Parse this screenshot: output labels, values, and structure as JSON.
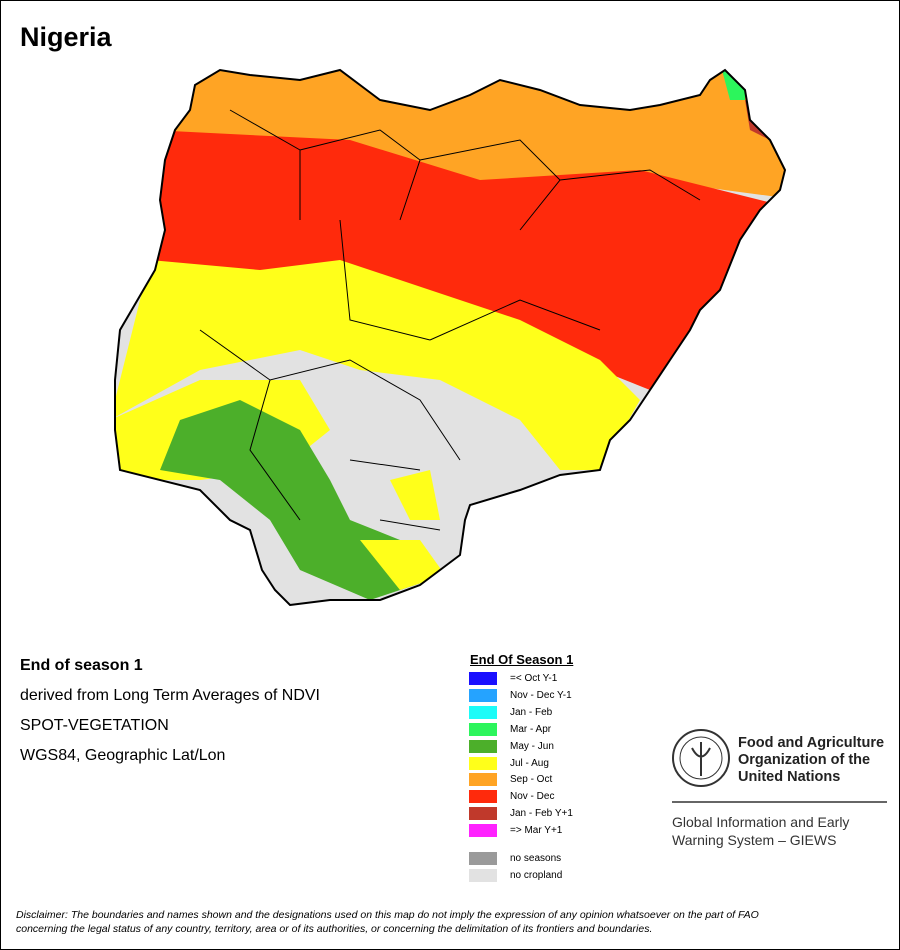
{
  "header": {
    "title": "Nigeria"
  },
  "info": [
    "End of season 1",
    "derived from Long Term Averages of NDVI",
    "SPOT-VEGETATION",
    "WGS84, Geographic Lat/Lon"
  ],
  "legend": {
    "title": "End Of Season 1",
    "items": [
      {
        "label": "=< Oct Y-1",
        "color": "#1a10ff"
      },
      {
        "label": "Nov - Dec Y-1",
        "color": "#25a3ff"
      },
      {
        "label": "Jan - Feb",
        "color": "#1cfcf8"
      },
      {
        "label": "Mar - Apr",
        "color": "#2cf55c"
      },
      {
        "label": "May - Jun",
        "color": "#4caf2a"
      },
      {
        "label": "Jul - Aug",
        "color": "#ffff1a"
      },
      {
        "label": "Sep - Oct",
        "color": "#ffa424"
      },
      {
        "label": "Nov - Dec",
        "color": "#ff2a0c"
      },
      {
        "label": "Jan - Feb Y+1",
        "color": "#c0392b"
      },
      {
        "label": "=> Mar Y+1",
        "color": "#ff22ff"
      }
    ],
    "extra": [
      {
        "label": "no seasons",
        "color": "#9a9a9a"
      },
      {
        "label": "no cropland",
        "color": "#e2e2e2"
      }
    ]
  },
  "organization": {
    "name": [
      "Food and Agriculture",
      "Organization of the",
      "United Nations"
    ],
    "unit": [
      "Global Information and Early",
      "Warning System – GIEWS"
    ]
  },
  "disclaimer": [
    "Disclaimer: The boundaries and names shown and the designations used on this map do not imply the expression of any opinion whatsoever on the part of FAO",
    "concerning the legal status of any country, territory, area or of its authorities, or concerning the delimitation of its frontiers and boundaries."
  ]
}
